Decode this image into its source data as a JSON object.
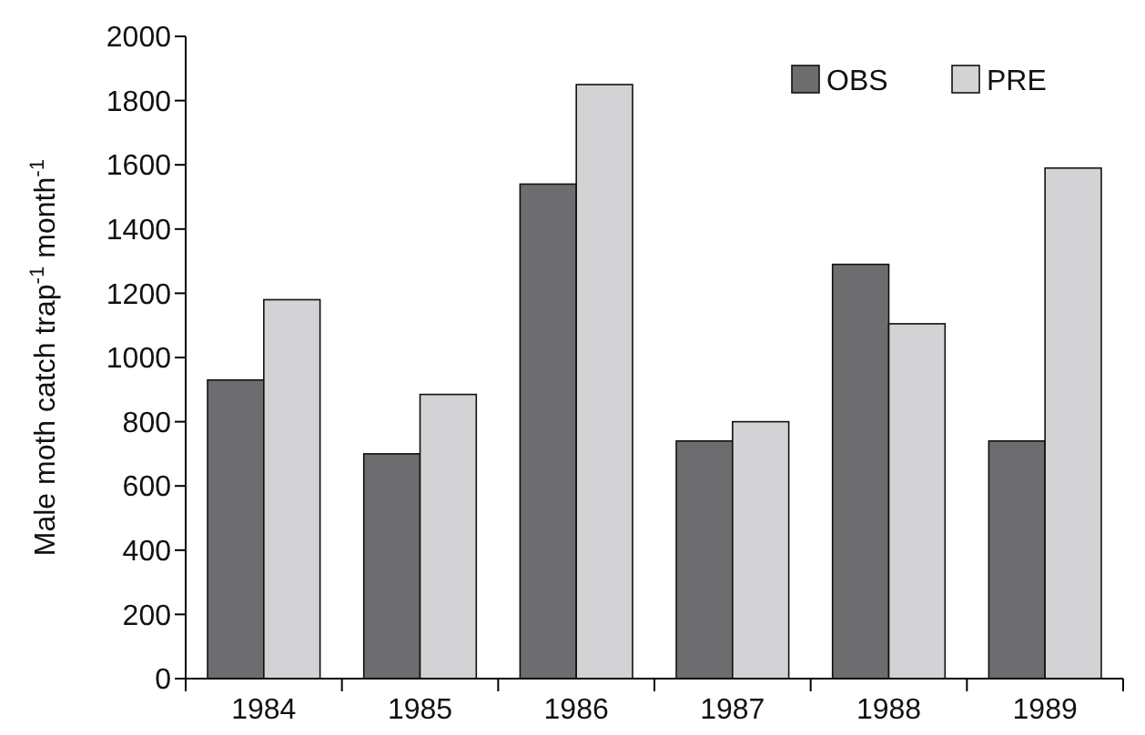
{
  "chart_data": {
    "type": "bar",
    "ylabel": "Male moth catch trap$^{-1}$ month$^{-1}$",
    "categories": [
      "1984",
      "1985",
      "1986",
      "1987",
      "1988",
      "1989"
    ],
    "series": [
      {
        "name": "OBS",
        "color": "#6d6d6f",
        "values": [
          930,
          700,
          1540,
          740,
          1290,
          740
        ]
      },
      {
        "name": "PRE",
        "color": "#d3d3d5",
        "values": [
          1180,
          885,
          1850,
          800,
          1105,
          1590
        ]
      }
    ],
    "ylim": [
      0,
      2000
    ],
    "yticks": [
      0,
      200,
      400,
      600,
      800,
      1000,
      1200,
      1400,
      1600,
      1800,
      2000
    ],
    "grid": false,
    "legend": "top right"
  }
}
